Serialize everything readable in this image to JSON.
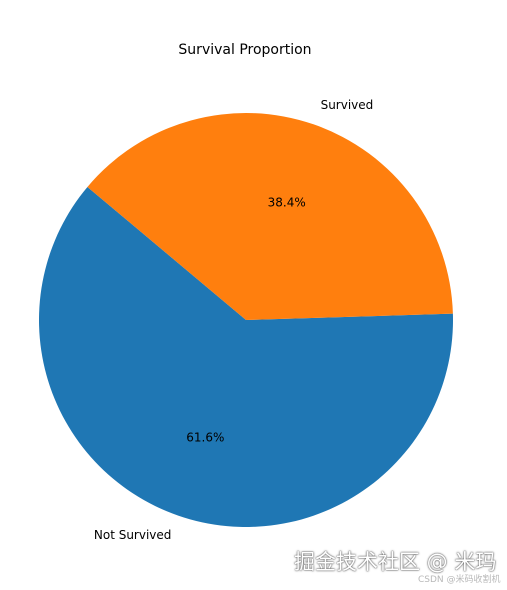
{
  "chart_data": {
    "type": "pie",
    "title": "Survival Proportion",
    "slices": [
      {
        "label": "Not Survived",
        "value": 61.6,
        "pct_label": "61.6%",
        "color": "#1f77b4"
      },
      {
        "label": "Survived",
        "value": 38.4,
        "pct_label": "38.4%",
        "color": "#ff7f0e"
      }
    ],
    "start_angle_deg": 140,
    "direction": "counterclockwise",
    "legend": "none"
  },
  "watermark": {
    "main": "掘金技术社区 @ 米玛",
    "sub": "CSDN @米码收割机"
  }
}
